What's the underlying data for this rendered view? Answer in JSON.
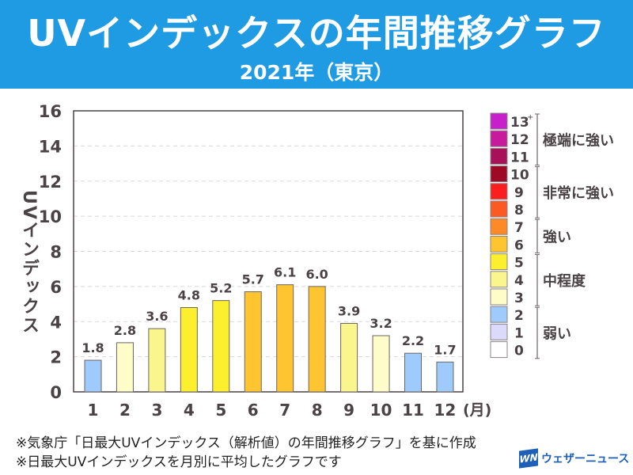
{
  "header": {
    "title": "UVインデックスの年間推移グラフ",
    "subtitle": "2021年（東京）"
  },
  "chart_data": {
    "type": "bar",
    "title": "UVインデックスの年間推移グラフ",
    "subtitle": "2021年（東京）",
    "xlabel": "(月)",
    "ylabel": "UVインデックス",
    "ylim": [
      0,
      16
    ],
    "yticks": [
      0,
      2,
      4,
      6,
      8,
      10,
      12,
      14,
      16
    ],
    "grid": true,
    "categories": [
      "1",
      "2",
      "3",
      "4",
      "5",
      "6",
      "7",
      "8",
      "9",
      "10",
      "11",
      "12"
    ],
    "values": [
      1.8,
      2.8,
      3.6,
      4.8,
      5.2,
      5.7,
      6.1,
      6.0,
      3.9,
      3.2,
      2.2,
      1.7
    ],
    "data_labels": [
      "1.8",
      "2.8",
      "3.6",
      "4.8",
      "5.2",
      "5.7",
      "6.1",
      "6.0",
      "3.9",
      "3.2",
      "2.2",
      "1.7"
    ],
    "legend": {
      "placement": "right",
      "levels": [
        {
          "label": "13+",
          "color": "#c81ecb"
        },
        {
          "label": "12",
          "color": "#c71a9c"
        },
        {
          "label": "11",
          "color": "#a8105a"
        },
        {
          "label": "10",
          "color": "#9e0a26"
        },
        {
          "label": "9",
          "color": "#fb1e1e"
        },
        {
          "label": "8",
          "color": "#fb5a22"
        },
        {
          "label": "7",
          "color": "#fd8a26"
        },
        {
          "label": "6",
          "color": "#fec530"
        },
        {
          "label": "5",
          "color": "#fcef2e"
        },
        {
          "label": "4",
          "color": "#fbf58e"
        },
        {
          "label": "3",
          "color": "#fefcc8"
        },
        {
          "label": "2",
          "color": "#9ecbfb"
        },
        {
          "label": "1",
          "color": "#dcdafb"
        },
        {
          "label": "0",
          "color": "#ffffff"
        }
      ],
      "groups": [
        {
          "label": "極端に強い",
          "from": "11",
          "to": "13+"
        },
        {
          "label": "非常に強い",
          "from": "8",
          "to": "10"
        },
        {
          "label": "強い",
          "from": "6",
          "to": "7"
        },
        {
          "label": "中程度",
          "from": "3",
          "to": "5"
        },
        {
          "label": "弱い",
          "from": "0",
          "to": "2"
        }
      ]
    }
  },
  "footer": {
    "notes": [
      "※気象庁「日最大UVインデックス（解析値）の年間推移グラフ」を基に作成",
      "※日最大UVインデックスを月別に平均したグラフです"
    ],
    "logo_mark": "WN",
    "logo_text": "ウェザーニュース"
  }
}
